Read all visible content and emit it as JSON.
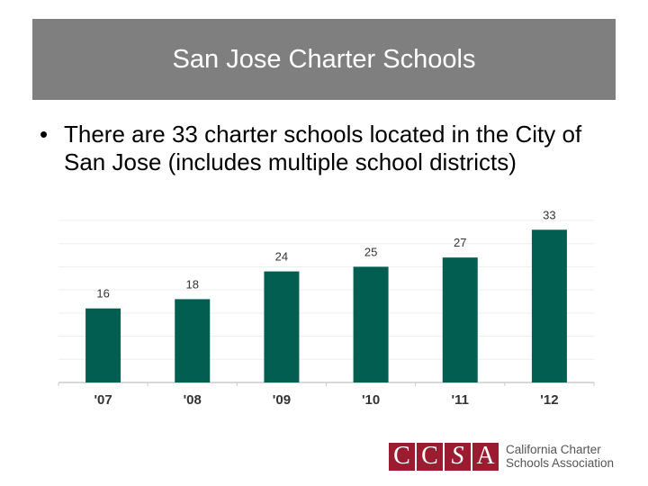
{
  "slide": {
    "title": "San Jose Charter Schools",
    "bullet_symbol": "•",
    "bullet_text": "There are 33 charter schools located in the City of San Jose (includes multiple school districts)"
  },
  "chart_data": {
    "type": "bar",
    "categories": [
      "'07",
      "'08",
      "'09",
      "'10",
      "'11",
      "'12"
    ],
    "values": [
      16,
      18,
      24,
      25,
      27,
      33
    ],
    "title": "",
    "xlabel": "",
    "ylabel": "",
    "ylim": [
      0,
      35
    ],
    "grid": true,
    "bar_color": "#035e52",
    "data_labels": true
  },
  "logo": {
    "letters": [
      "C",
      "C",
      "S",
      "A"
    ],
    "name_line1": "California Charter",
    "name_line2": "Schools Association",
    "color": "#9b1b30"
  }
}
